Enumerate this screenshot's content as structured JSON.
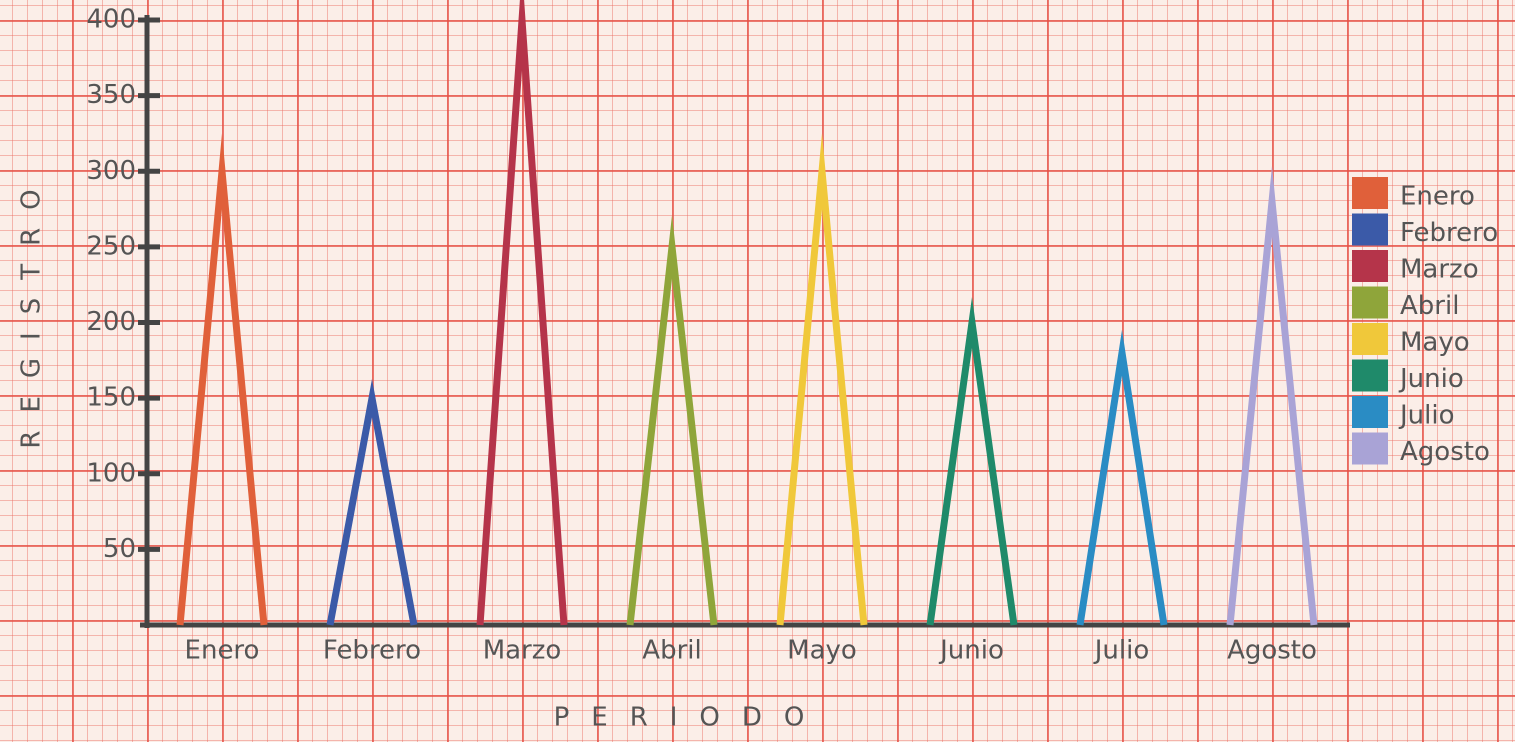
{
  "chart_data": {
    "type": "triangle",
    "x_label": "PERIODO",
    "y_label": "REGISTRO",
    "categories": [
      "Enero",
      "Febrero",
      "Marzo",
      "Abril",
      "Mayo",
      "Junio",
      "Julio",
      "Agosto"
    ],
    "values": [
      300,
      150,
      400,
      250,
      300,
      200,
      180,
      280
    ],
    "colors": [
      "#e0603a",
      "#3b5aa8",
      "#b5344a",
      "#8fa53a",
      "#f0c83a",
      "#1f8a6a",
      "#2a8cc4",
      "#a9a3d6"
    ],
    "ylim": [
      0,
      400
    ],
    "yticks": [
      50,
      100,
      150,
      200,
      250,
      300,
      350,
      400
    ],
    "legend": "right"
  }
}
